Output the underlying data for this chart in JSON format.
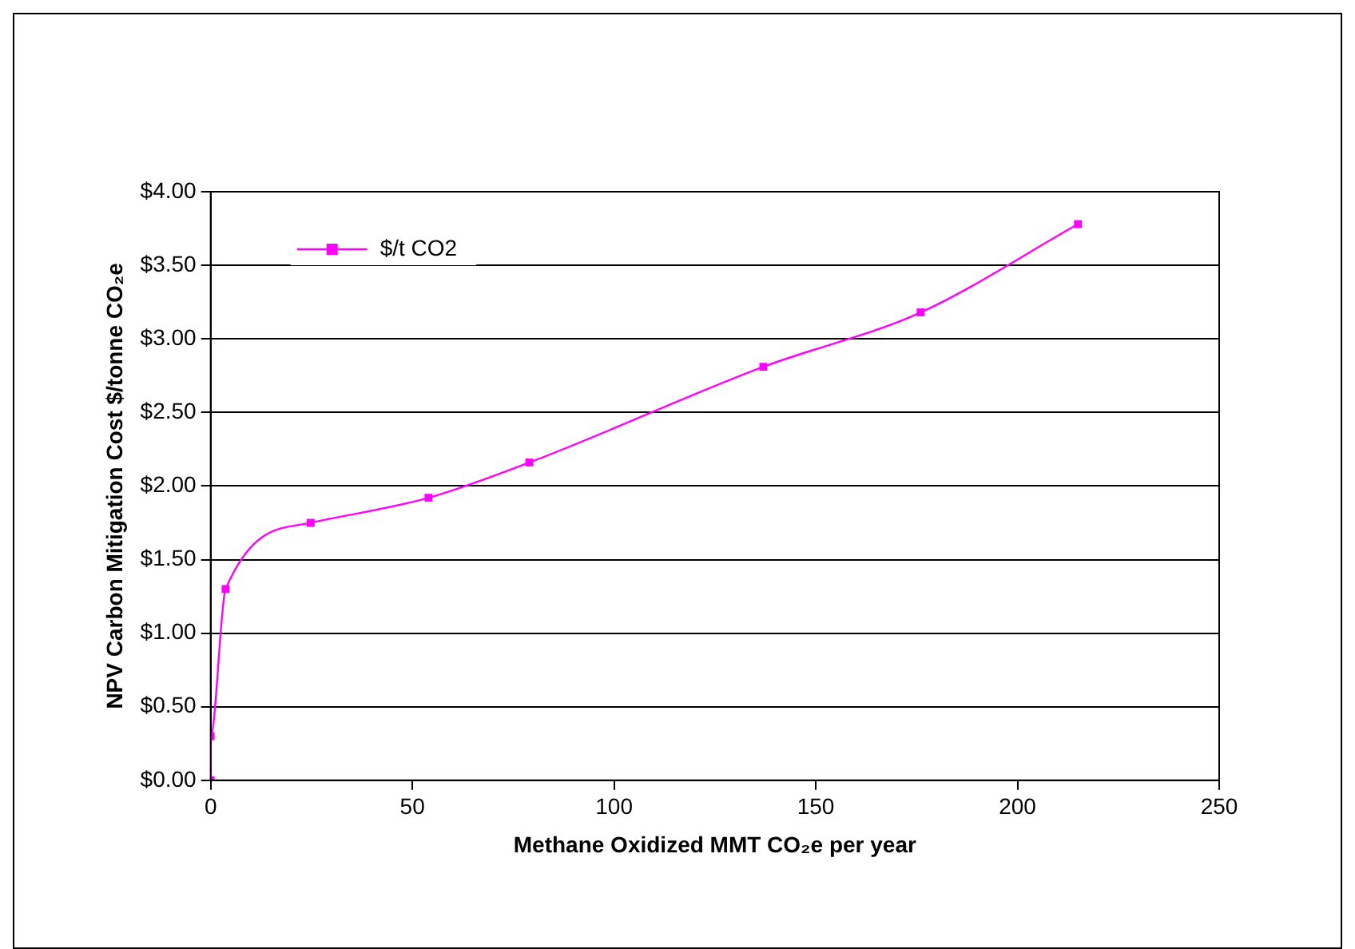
{
  "chart_data": {
    "type": "line",
    "xlabel": "Methane Oxidized MMT CO₂e per year",
    "ylabel": "NPV Carbon Mitigation Cost $/tonne CO₂e",
    "x": [
      0,
      0,
      3.7,
      24.8,
      54,
      79,
      137,
      176,
      215
    ],
    "series": [
      {
        "name": "$/t CO2",
        "color": "#ff00ff",
        "values": [
          0.0,
          0.3,
          1.3,
          1.75,
          1.92,
          2.16,
          2.81,
          3.18,
          3.78
        ]
      }
    ],
    "xlim": [
      0,
      250
    ],
    "xticks": [
      0,
      50,
      100,
      150,
      200,
      250
    ],
    "ylim": [
      0,
      4
    ],
    "yticks": [
      {
        "value": 0,
        "label": "$0.00"
      },
      {
        "value": 0.5,
        "label": "$0.50"
      },
      {
        "value": 1,
        "label": "$1.00"
      },
      {
        "value": 1.5,
        "label": "$1.50"
      },
      {
        "value": 2,
        "label": "$2.00"
      },
      {
        "value": 2.5,
        "label": "$2.50"
      },
      {
        "value": 3,
        "label": "$3.00"
      },
      {
        "value": 3.5,
        "label": "$3.50"
      },
      {
        "value": 4,
        "label": "$4.00"
      }
    ],
    "grid": "y",
    "legend": "top left",
    "marker": "square",
    "line_style": "solid"
  }
}
